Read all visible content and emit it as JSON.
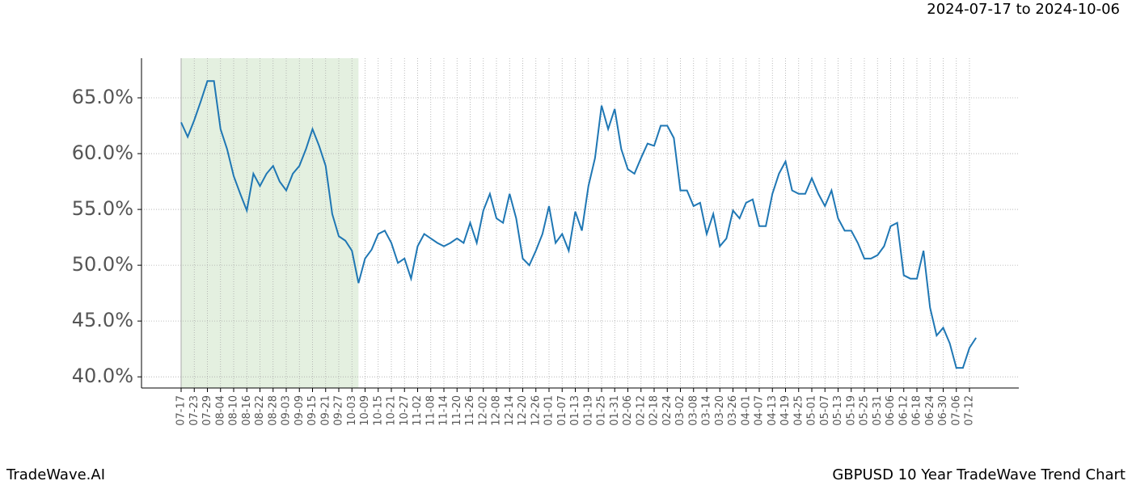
{
  "chart_data": {
    "type": "line",
    "subtitle": "2024-07-17 to 2024-10-06",
    "footer_left": "TradeWave.AI",
    "title": "GBPUSD 10 Year TradeWave Trend Chart",
    "categories": [
      "07-17",
      null,
      "07-23",
      null,
      "07-29",
      null,
      "08-04",
      null,
      "08-10",
      null,
      "08-16",
      null,
      "08-22",
      null,
      "08-28",
      null,
      "09-03",
      null,
      "09-09",
      null,
      "09-15",
      null,
      "09-21",
      null,
      "09-27",
      null,
      "10-03",
      null,
      "10-09",
      null,
      "10-15",
      null,
      "10-21",
      null,
      "10-27",
      null,
      "11-02",
      null,
      "11-08",
      null,
      "11-14",
      null,
      "11-20",
      null,
      "11-26",
      null,
      "12-02",
      null,
      "12-08",
      null,
      "12-14",
      null,
      "12-20",
      null,
      "12-26",
      null,
      "01-01",
      null,
      "01-07",
      null,
      "01-13",
      null,
      "01-19",
      null,
      "01-25",
      null,
      "01-31",
      null,
      "02-06",
      null,
      "02-12",
      null,
      "02-18",
      null,
      "02-24",
      null,
      "03-02",
      null,
      "03-08",
      null,
      "03-14",
      null,
      "03-20",
      null,
      "03-26",
      null,
      "04-01",
      null,
      "04-07",
      null,
      "04-13",
      null,
      "04-19",
      null,
      "04-25",
      null,
      "05-01",
      null,
      "05-07",
      null,
      "05-13",
      null,
      "05-19",
      null,
      "05-25",
      null,
      "05-31",
      null,
      "06-06",
      null,
      "06-12",
      null,
      "06-18",
      null,
      "06-24",
      null,
      "06-30",
      null,
      "07-06",
      null,
      "07-12",
      null
    ],
    "series": [
      {
        "color": "#1f77b4",
        "values": [
          62.8,
          61.5,
          63.0,
          64.7,
          66.5,
          66.5,
          62.2,
          60.4,
          58.0,
          56.4,
          54.9,
          58.2,
          57.1,
          58.2,
          58.9,
          57.5,
          56.7,
          58.2,
          58.9,
          60.4,
          62.2,
          60.7,
          58.9,
          54.6,
          52.6,
          52.2,
          51.3,
          48.4,
          50.6,
          51.4,
          52.8,
          53.1,
          52.0,
          50.2,
          50.6,
          48.8,
          51.7,
          52.8,
          52.4,
          52.0,
          51.7,
          52.0,
          52.4,
          52.0,
          53.8,
          52.0,
          54.9,
          56.4,
          54.2,
          53.8,
          56.4,
          54.2,
          50.6,
          50.0,
          51.3,
          52.8,
          55.3,
          52.0,
          52.8,
          51.3,
          54.8,
          53.1,
          57.1,
          59.6,
          64.3,
          62.2,
          64.0,
          60.4,
          58.6,
          58.2,
          59.6,
          60.9,
          60.7,
          62.5,
          62.5,
          61.4,
          56.7,
          56.7,
          55.3,
          55.6,
          52.8,
          54.6,
          51.7,
          52.4,
          54.9,
          54.2,
          55.6,
          55.9,
          53.5,
          53.5,
          56.4,
          58.2,
          59.3,
          56.7,
          56.4,
          56.4,
          57.8,
          56.4,
          55.3,
          56.7,
          54.2,
          53.1,
          53.1,
          52.0,
          50.6,
          50.6,
          50.9,
          51.7,
          53.5,
          53.8,
          49.1,
          48.8,
          48.8,
          51.3,
          46.2,
          43.7,
          44.4,
          43.0,
          40.8,
          40.8,
          42.6,
          43.5
        ]
      }
    ],
    "ylim": [
      39.0,
      68.55
    ],
    "yticks": [
      {
        "value": 40,
        "label": "40.0%"
      },
      {
        "value": 45,
        "label": "45.0%"
      },
      {
        "value": 50,
        "label": "50.0%"
      },
      {
        "value": 55,
        "label": "55.0%"
      },
      {
        "value": 60,
        "label": "60.0%"
      },
      {
        "value": 65,
        "label": "65.0%"
      }
    ],
    "shade": [
      0,
      27
    ],
    "shade_color": "#d8ead3",
    "grid": true
  }
}
